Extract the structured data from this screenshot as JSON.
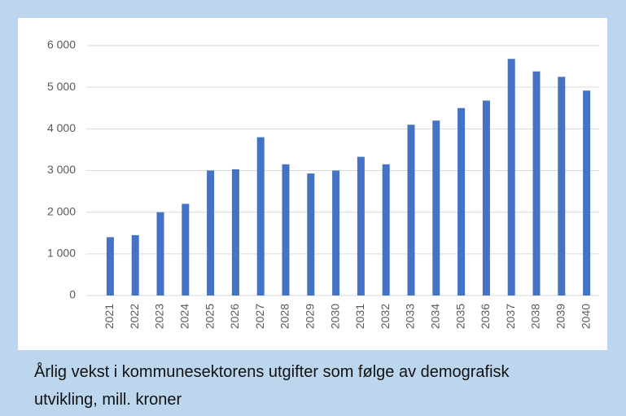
{
  "chart_data": {
    "type": "bar",
    "caption": "Årlig vekst i kommunesektorens utgifter som følge av demografisk utvikling, mill. kroner",
    "categories": [
      "2021",
      "2022",
      "2023",
      "2024",
      "2025",
      "2026",
      "2027",
      "2028",
      "2029",
      "2030",
      "2031",
      "2032",
      "2033",
      "2034",
      "2035",
      "2036",
      "2037",
      "2038",
      "2039",
      "2040"
    ],
    "values": [
      1400,
      1450,
      2000,
      2200,
      3000,
      3030,
      3800,
      3150,
      2930,
      3000,
      3330,
      3150,
      4100,
      4200,
      4500,
      4680,
      5680,
      5380,
      5250,
      4920
    ],
    "color": "#4472c4",
    "ylim": [
      0,
      6000
    ],
    "yticks": [
      0,
      {
        "value": 1000,
        "label": "1 000"
      },
      {
        "value": 2000,
        "label": "2 000"
      },
      {
        "value": 3000,
        "label": "3 000"
      },
      {
        "value": 4000,
        "label": "4 000"
      },
      {
        "value": 5000,
        "label": "5 000"
      },
      {
        "value": 6000,
        "label": "6 000"
      }
    ],
    "grid": true
  }
}
